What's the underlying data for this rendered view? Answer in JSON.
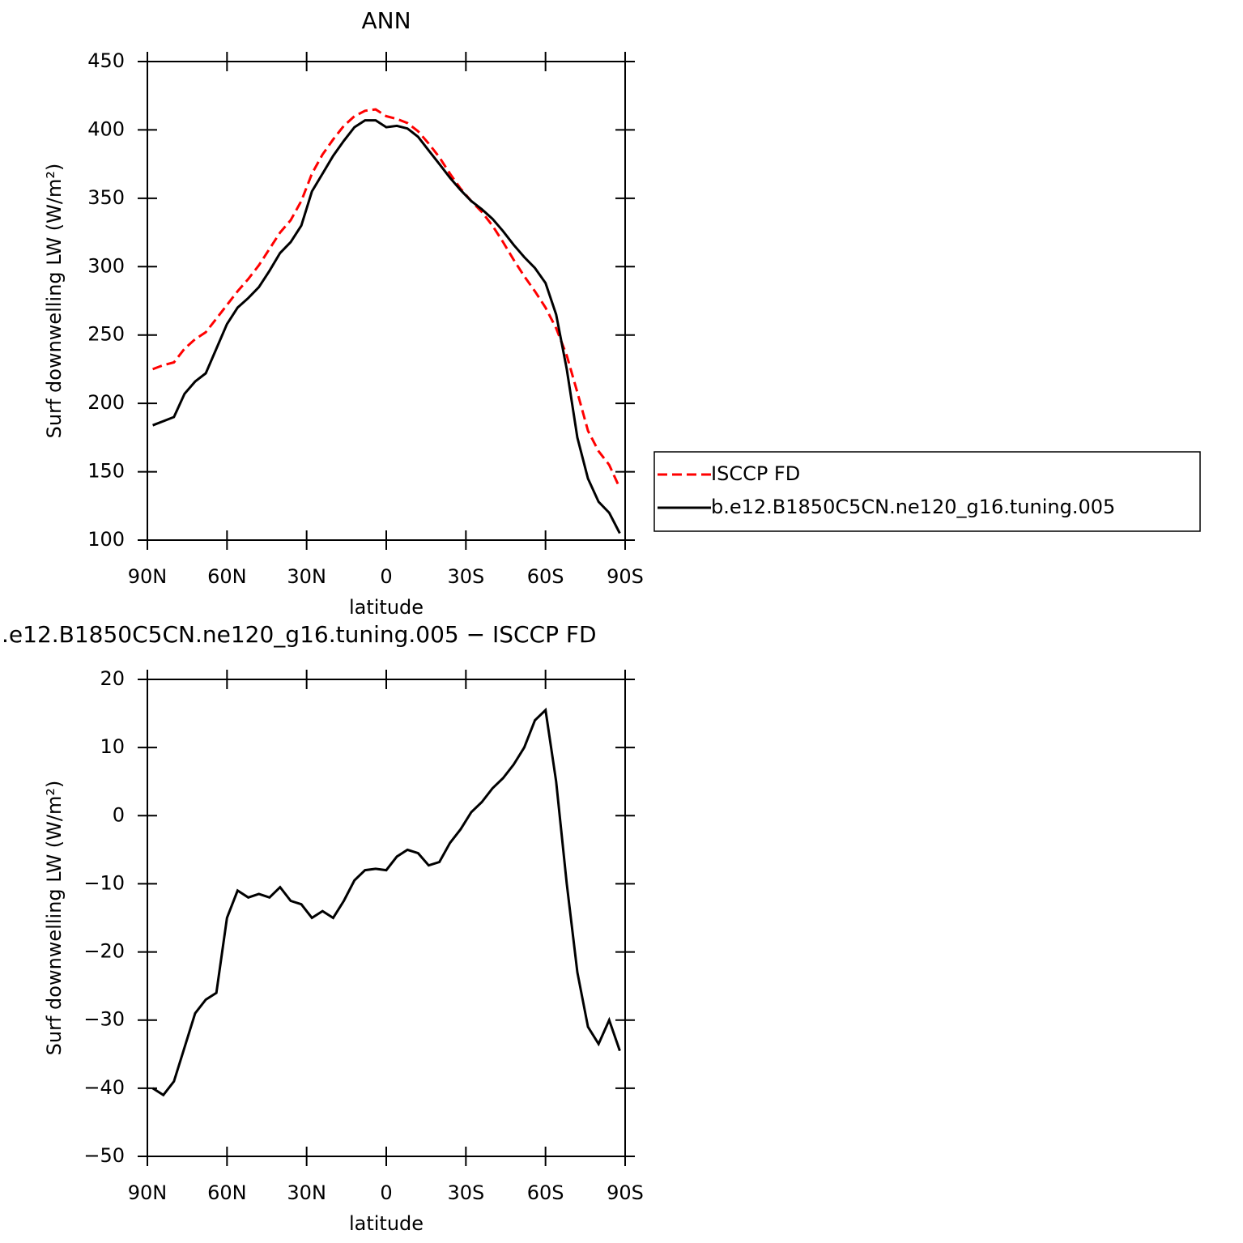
{
  "chart_data": [
    {
      "type": "line",
      "title": "ANN",
      "xlabel": "latitude",
      "ylabel": "Surf downwelling LW (W/m²)",
      "x": [
        88,
        84,
        80,
        76,
        72,
        68,
        64,
        60,
        56,
        52,
        48,
        44,
        40,
        36,
        32,
        28,
        24,
        20,
        16,
        12,
        8,
        4,
        0,
        -4,
        -8,
        -12,
        -16,
        -20,
        -24,
        -28,
        -32,
        -36,
        -40,
        -44,
        -48,
        -52,
        -56,
        -60,
        -64,
        -68,
        -72,
        -76,
        -80,
        -84,
        -88
      ],
      "xlim": [
        90,
        -90
      ],
      "xticks": [
        {
          "value": 90,
          "label": "90N"
        },
        {
          "value": 60,
          "label": "60N"
        },
        {
          "value": 30,
          "label": "30N"
        },
        0,
        {
          "value": -30,
          "label": "30S"
        },
        {
          "value": -60,
          "label": "60S"
        },
        {
          "value": -90,
          "label": "90S"
        }
      ],
      "ylim": [
        100,
        450
      ],
      "yticks": [
        100,
        150,
        200,
        250,
        300,
        350,
        400,
        450
      ],
      "legend": "right",
      "series": [
        {
          "name": "ISCCP FD",
          "color": "#ff0000",
          "dash": true,
          "values": [
            225,
            228,
            230,
            240,
            247,
            252,
            262,
            272,
            282,
            291,
            301,
            313,
            325,
            334,
            348,
            368,
            382,
            393,
            403,
            410,
            414,
            415,
            410,
            408,
            405,
            399,
            390,
            380,
            368,
            357,
            348,
            340,
            330,
            318,
            305,
            293,
            282,
            270,
            255,
            235,
            208,
            180,
            165,
            155,
            138
          ]
        },
        {
          "name": "b.e12.B1850C5CN.ne120_g16.tuning.005",
          "color": "#000000",
          "dash": false,
          "values": [
            184,
            187,
            190,
            207,
            216,
            222,
            240,
            258,
            270,
            277,
            285,
            297,
            310,
            318,
            330,
            355,
            368,
            381,
            392,
            402,
            407,
            407,
            402,
            403,
            401,
            395,
            385,
            375,
            365,
            356,
            348,
            342,
            335,
            326,
            316,
            307,
            299,
            288,
            265,
            225,
            175,
            145,
            128,
            120,
            105
          ]
        }
      ]
    },
    {
      "type": "line",
      "title": ".e12.B1850C5CN.ne120_g16.tuning.005 − ISCCP FD",
      "xlabel": "latitude",
      "ylabel": "Surf downwelling LW (W/m²)",
      "x": [
        88,
        84,
        80,
        76,
        72,
        68,
        64,
        60,
        56,
        52,
        48,
        44,
        40,
        36,
        32,
        28,
        24,
        20,
        16,
        12,
        8,
        4,
        0,
        -4,
        -8,
        -12,
        -16,
        -20,
        -24,
        -28,
        -32,
        -36,
        -40,
        -44,
        -48,
        -52,
        -56,
        -60,
        -64,
        -68,
        -72,
        -76,
        -80,
        -84,
        -88
      ],
      "xlim": [
        90,
        -90
      ],
      "xticks": [
        {
          "value": 90,
          "label": "90N"
        },
        {
          "value": 60,
          "label": "60N"
        },
        {
          "value": 30,
          "label": "30N"
        },
        0,
        {
          "value": -30,
          "label": "30S"
        },
        {
          "value": -60,
          "label": "60S"
        },
        {
          "value": -90,
          "label": "90S"
        }
      ],
      "ylim": [
        -50,
        20
      ],
      "yticks": [
        {
          "value": -50,
          "label": "−50"
        },
        {
          "value": -40,
          "label": "−40"
        },
        {
          "value": -30,
          "label": "−30"
        },
        {
          "value": -20,
          "label": "−20"
        },
        {
          "value": -10,
          "label": "−10"
        },
        0,
        10,
        20
      ],
      "series": [
        {
          "color": "#000000",
          "dash": false,
          "values": [
            -40,
            -41,
            -39,
            -34,
            -29,
            -27,
            -26,
            -15,
            -11,
            -12,
            -11.5,
            -12,
            -10.5,
            -12.5,
            -13,
            -15,
            -14,
            -15,
            -12.5,
            -9.5,
            -8,
            -7.8,
            -8,
            -6,
            -5,
            -5.5,
            -7.3,
            -6.8,
            -4,
            -2,
            0.5,
            2,
            4,
            5.5,
            7.5,
            10,
            14,
            15.5,
            5,
            -10,
            -23,
            -31,
            -33.5,
            -30,
            -34.5
          ]
        }
      ]
    }
  ]
}
